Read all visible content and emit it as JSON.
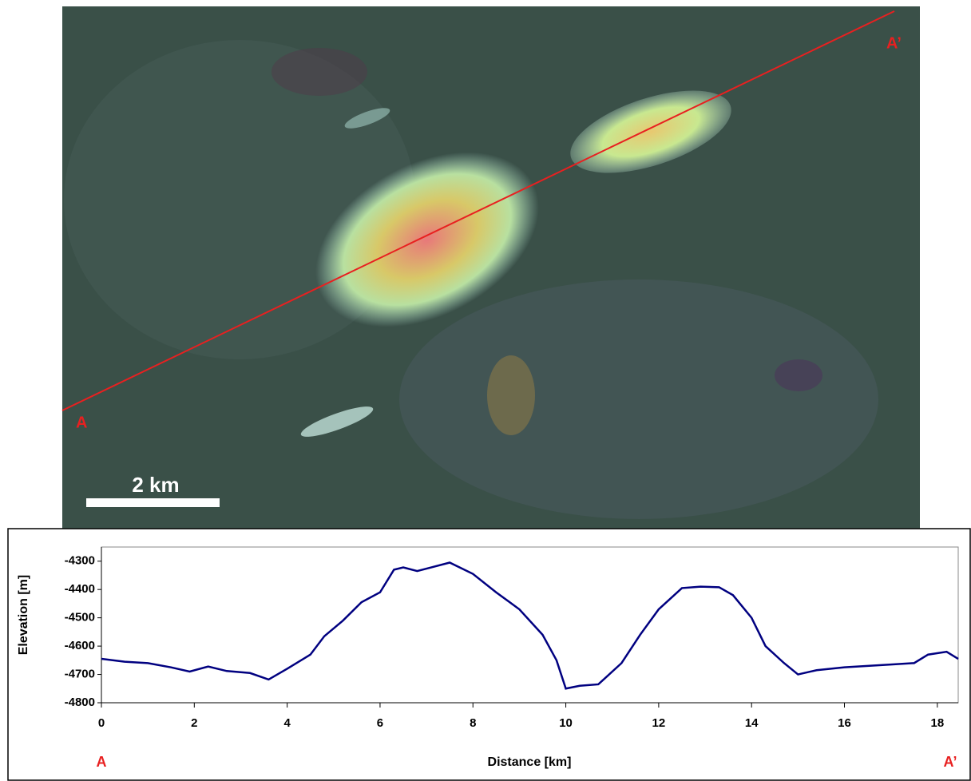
{
  "image": {
    "start_label": "A",
    "end_label": "A’",
    "scale_label": "2 km"
  },
  "chart_data": {
    "type": "line",
    "xlabel": "Distance [km]",
    "ylabel": "Elevation [m]",
    "start_label": "A",
    "end_label": "A’",
    "x": [
      0,
      0.5,
      1,
      1.5,
      1.9,
      2.3,
      2.7,
      3.2,
      3.6,
      4,
      4.5,
      4.8,
      5.2,
      5.6,
      6,
      6.3,
      6.5,
      6.8,
      7.1,
      7.5,
      8,
      8.5,
      9,
      9.5,
      9.8,
      10,
      10.3,
      10.7,
      11.2,
      11.6,
      12,
      12.5,
      12.9,
      13.3,
      13.6,
      14,
      14.3,
      14.7,
      15,
      15.4,
      16,
      16.5,
      17,
      17.5,
      17.8,
      18.2,
      18.45
    ],
    "series": [
      {
        "color": "#000080",
        "values": [
          -4645,
          -4655,
          -4660,
          -4675,
          -4690,
          -4672,
          -4688,
          -4695,
          -4718,
          -4680,
          -4630,
          -4565,
          -4510,
          -4445,
          -4410,
          -4330,
          -4322,
          -4335,
          -4322,
          -4305,
          -4345,
          -4410,
          -4470,
          -4560,
          -4650,
          -4750,
          -4740,
          -4735,
          -4660,
          -4560,
          -4470,
          -4395,
          -4390,
          -4392,
          -4420,
          -4500,
          -4600,
          -4660,
          -4700,
          -4685,
          -4675,
          -4670,
          -4665,
          -4660,
          -4630,
          -4620,
          -4645
        ]
      }
    ],
    "xlim": [
      0,
      18.45
    ],
    "ylim": [
      -4800,
      -4250
    ],
    "xticks": [
      0,
      2,
      4,
      6,
      8,
      10,
      12,
      14,
      16,
      18
    ],
    "yticks": [
      -4800,
      -4700,
      -4600,
      -4500,
      -4400,
      -4300
    ]
  }
}
